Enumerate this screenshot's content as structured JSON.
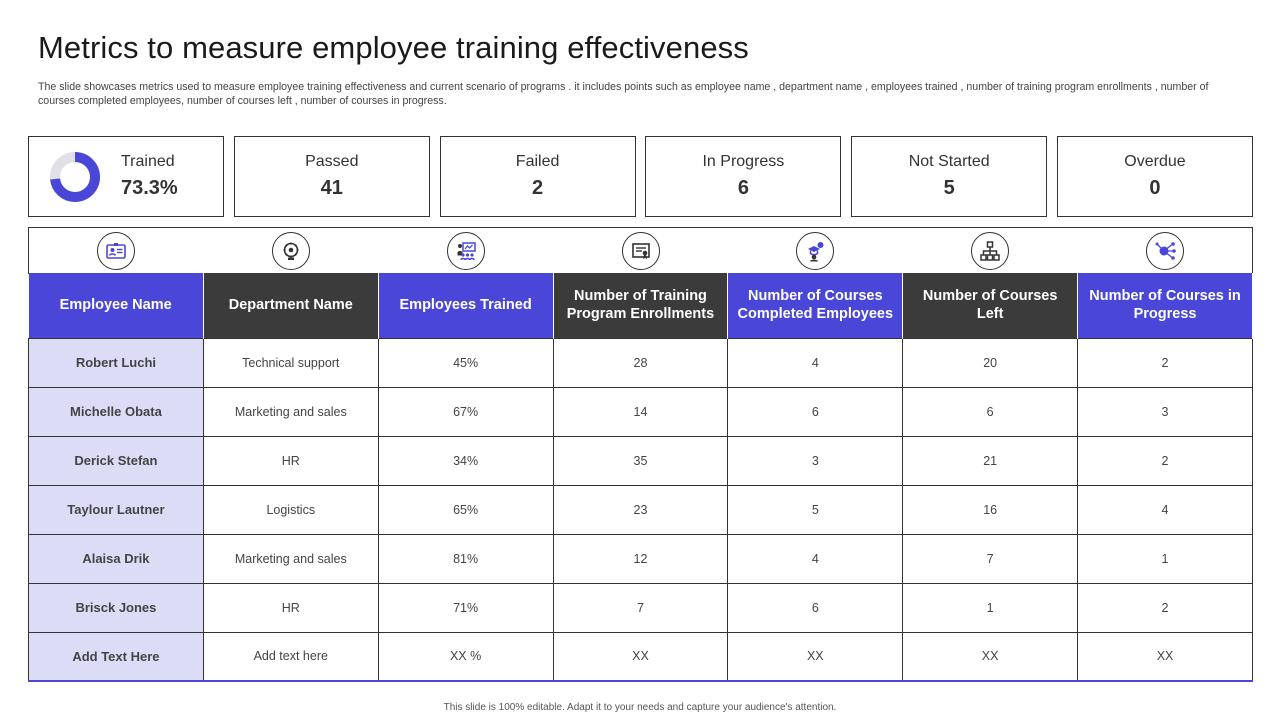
{
  "title": "Metrics to measure employee training effectiveness",
  "subtitle": "The slide showcases metrics used to measure employee training effectiveness and current scenario of programs . it includes points such as employee name , department name , employees trained , number of training program enrollments , number of courses completed employees, number of courses left , number of courses in progress.",
  "colors": {
    "accent": "#4a47d8",
    "dark": "#3b3b3b",
    "name_cell": "#dcdcf7"
  },
  "stats": {
    "trained": {
      "label": "Trained",
      "value": "73.3%",
      "fraction": 0.733
    },
    "passed": {
      "label": "Passed",
      "value": "41"
    },
    "failed": {
      "label": "Failed",
      "value": "2"
    },
    "in_progress": {
      "label": "In Progress",
      "value": "6"
    },
    "not_started": {
      "label": "Not Started",
      "value": "5"
    },
    "overdue": {
      "label": "Overdue",
      "value": "0"
    }
  },
  "icons": [
    "id-card-icon",
    "brain-gear-icon",
    "presentation-icon",
    "certificate-icon",
    "graduate-chat-icon",
    "org-chart-icon",
    "network-icon"
  ],
  "table": {
    "headers": [
      "Employee Name",
      "Department Name",
      "Employees Trained",
      "Number of Training Program Enrollments",
      "Number of Courses Completed Employees",
      "Number of Courses Left",
      "Number of Courses in Progress"
    ],
    "rows": [
      [
        "Robert Luchi",
        "Technical support",
        "45%",
        "28",
        "4",
        "20",
        "2"
      ],
      [
        "Michelle Obata",
        "Marketing and sales",
        "67%",
        "14",
        "6",
        "6",
        "3"
      ],
      [
        "Derick Stefan",
        "HR",
        "34%",
        "35",
        "3",
        "21",
        "2"
      ],
      [
        "Taylour Lautner",
        "Logistics",
        "65%",
        "23",
        "5",
        "16",
        "4"
      ],
      [
        "Alaisa Drik",
        "Marketing and sales",
        "81%",
        "12",
        "4",
        "7",
        "1"
      ],
      [
        "Brisck Jones",
        "HR",
        "71%",
        "7",
        "6",
        "1",
        "2"
      ],
      [
        "Add Text Here",
        "Add text here",
        "XX  %",
        "XX",
        "XX",
        "XX",
        "XX"
      ]
    ]
  },
  "footer": "This slide is 100% editable. Adapt it to your needs and capture your audience's attention."
}
